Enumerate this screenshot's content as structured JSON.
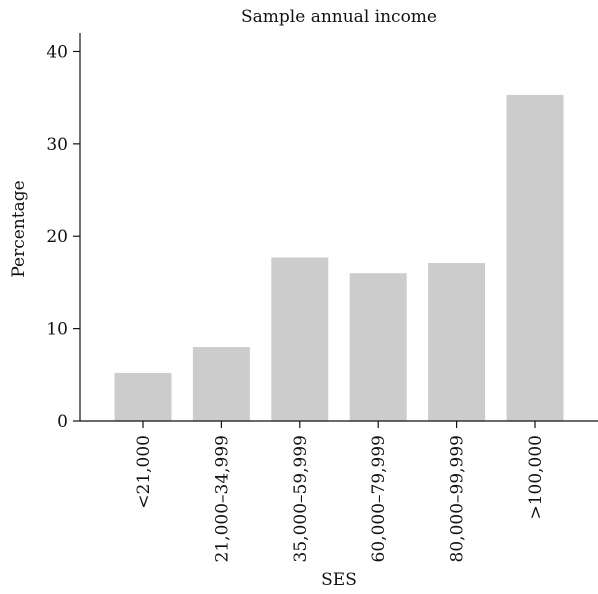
{
  "chart_data": {
    "type": "bar",
    "title": "Sample annual income",
    "xlabel": "SES",
    "ylabel": "Percentage",
    "categories": [
      "<21,000",
      "21,000–34,999",
      "35,000–59,999",
      "60,000–79,999",
      "80,000–99,999",
      ">100,000"
    ],
    "values": [
      5.2,
      8.0,
      17.7,
      16.0,
      17.1,
      35.3
    ],
    "ylim": [
      0,
      42
    ],
    "yticks": [
      0,
      10,
      20,
      30,
      40
    ],
    "grid": false,
    "legend": "none",
    "bar_color": "#cccccc",
    "axis_color": "#111111"
  }
}
